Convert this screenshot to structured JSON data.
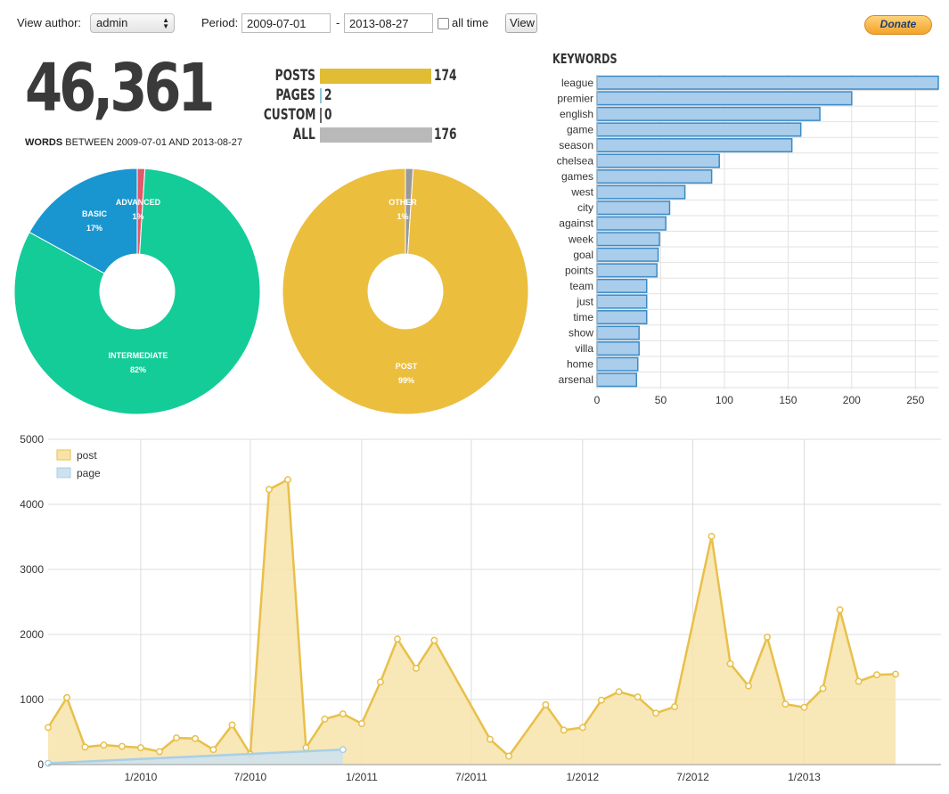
{
  "toolbar": {
    "author_label": "View author:",
    "author_value": "admin",
    "period_label": "Period:",
    "date_from": "2009-07-01",
    "date_sep": "-",
    "date_to": "2013-08-27",
    "all_time_label": "all time",
    "view_label": "View",
    "donate_label": "Donate"
  },
  "summary": {
    "word_count": "46,361",
    "words_label": "WORDS",
    "between_text": "BETWEEN 2009-07-01 AND 2013-08-27"
  },
  "counts": [
    {
      "label": "POSTS",
      "value": "174",
      "fraction": 0.989,
      "color": "#e1bd36"
    },
    {
      "label": "PAGES",
      "value": "2",
      "fraction": 0.011,
      "color": "#8fc7d9"
    },
    {
      "label": "CUSTOM",
      "value": "0",
      "fraction": 0,
      "color": "#bbbbbb"
    },
    {
      "label": "ALL",
      "value": "176",
      "fraction": 1,
      "color": "#b9b9b9"
    }
  ],
  "chart_data": [
    {
      "type": "pie",
      "variant": "donut",
      "slices": [
        {
          "label": "ADVANCED",
          "pct_label": "1%",
          "value": 1,
          "color": "#e05a6a"
        },
        {
          "label": "INTERMEDIATE",
          "pct_label": "82%",
          "value": 82,
          "color": "#14cc98"
        },
        {
          "label": "BASIC",
          "pct_label": "17%",
          "value": 17,
          "color": "#1996d0"
        }
      ]
    },
    {
      "type": "pie",
      "variant": "donut",
      "slices": [
        {
          "label": "OTHER",
          "pct_label": "1%",
          "value": 1,
          "color": "#999999"
        },
        {
          "label": "POST",
          "pct_label": "99%",
          "value": 99,
          "color": "#ebbe3e"
        }
      ]
    },
    {
      "type": "bar",
      "orientation": "horizontal",
      "title": "KEYWORDS",
      "categories": [
        "league",
        "premier",
        "english",
        "game",
        "season",
        "chelsea",
        "games",
        "west",
        "city",
        "against",
        "week",
        "goal",
        "points",
        "team",
        "just",
        "time",
        "show",
        "villa",
        "home",
        "arsenal"
      ],
      "values": [
        268,
        200,
        175,
        160,
        153,
        96,
        90,
        69,
        57,
        54,
        49,
        48,
        47,
        39,
        39,
        39,
        33,
        33,
        32,
        31
      ],
      "xlim": [
        0,
        268
      ],
      "xticks": [
        "0",
        "50",
        "100",
        "150",
        "200",
        "250"
      ],
      "xtick_values": [
        0,
        50,
        100,
        150,
        200,
        250
      ],
      "grid": true,
      "bar_color": "#a9cdeb",
      "bar_stroke": "#3a8bc8"
    },
    {
      "type": "area",
      "ylim": [
        0,
        5000
      ],
      "yticks": [
        "0",
        "1000",
        "2000",
        "3000",
        "4000",
        "5000"
      ],
      "ytick_values": [
        0,
        1000,
        2000,
        3000,
        4000,
        5000
      ],
      "xlim": [
        "2009-08-01",
        "2013-08-15"
      ],
      "xticks": [
        "1/2010",
        "7/2010",
        "1/2011",
        "7/2011",
        "1/2012",
        "7/2012",
        "1/2013"
      ],
      "xtick_dates": [
        "2010-01-01",
        "2010-07-01",
        "2011-01-01",
        "2011-07-01",
        "2012-01-01",
        "2012-07-01",
        "2013-01-01"
      ],
      "legend_position": "top-left",
      "grid": true,
      "series": [
        {
          "name": "post",
          "color": "#e8c04a",
          "fill": "#f7e3aa",
          "x": [
            "2009-08-01",
            "2009-09-01",
            "2009-10-01",
            "2009-11-01",
            "2009-12-01",
            "2010-01-01",
            "2010-02-01",
            "2010-03-01",
            "2010-04-01",
            "2010-05-01",
            "2010-06-01",
            "2010-07-01",
            "2010-08-01",
            "2010-09-01",
            "2010-10-01",
            "2010-11-01",
            "2010-12-01",
            "2011-01-01",
            "2011-02-01",
            "2011-03-01",
            "2011-04-01",
            "2011-05-01",
            "2011-08-01",
            "2011-09-01",
            "2011-11-01",
            "2011-12-01",
            "2012-01-01",
            "2012-02-01",
            "2012-03-01",
            "2012-04-01",
            "2012-05-01",
            "2012-06-01",
            "2012-08-01",
            "2012-09-01",
            "2012-10-01",
            "2012-11-01",
            "2012-12-01",
            "2013-01-01",
            "2013-02-01",
            "2013-03-01",
            "2013-04-01",
            "2013-05-01",
            "2013-06-01"
          ],
          "values": [
            570,
            1030,
            270,
            300,
            280,
            260,
            200,
            410,
            400,
            230,
            610,
            160,
            4230,
            4380,
            260,
            700,
            780,
            630,
            1270,
            1930,
            1480,
            1910,
            390,
            130,
            920,
            530,
            570,
            990,
            1120,
            1040,
            790,
            890,
            3510,
            1550,
            1210,
            1960,
            930,
            880,
            1170,
            2380,
            1280,
            1380,
            1390
          ]
        },
        {
          "name": "page",
          "color": "#a8cfe6",
          "fill": "#cde2f0",
          "x": [
            "2009-08-01",
            "2010-12-01"
          ],
          "values": [
            20,
            230
          ]
        }
      ]
    }
  ]
}
